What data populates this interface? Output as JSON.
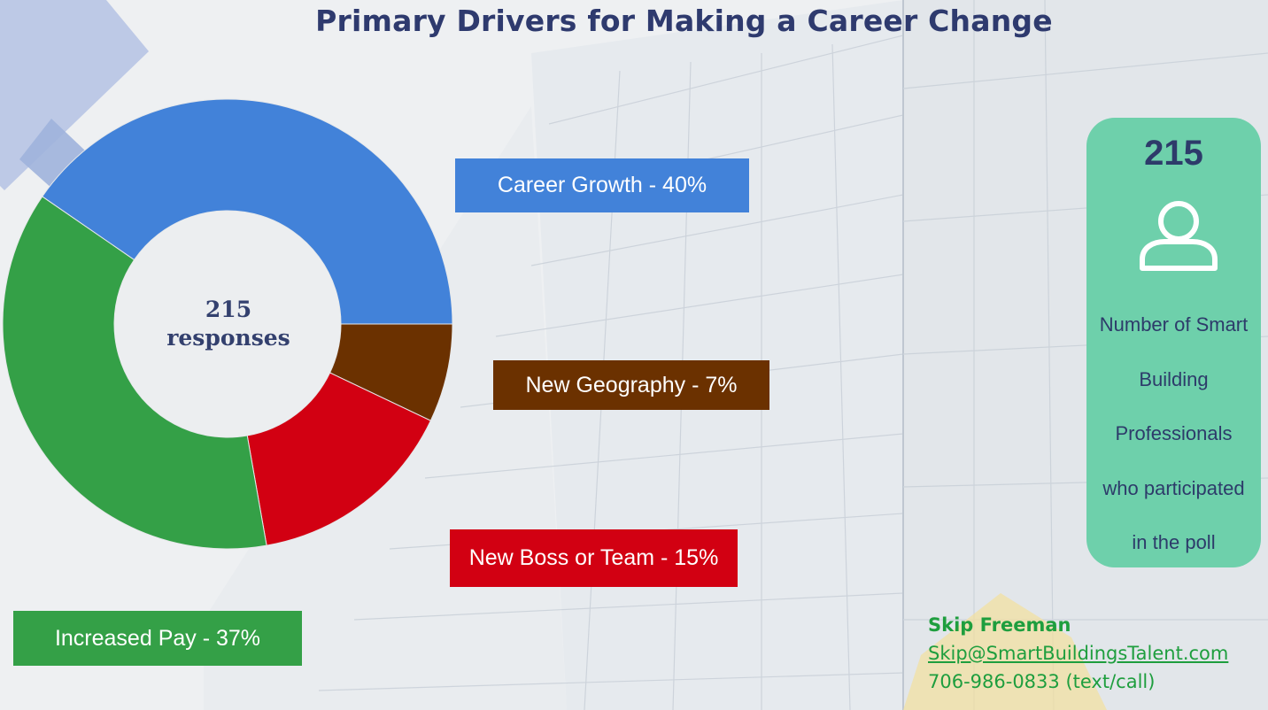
{
  "title": "Primary Drivers for Making a Career Change",
  "colors": {
    "title": "#2e3a6e",
    "card": "#6ed0ab",
    "contact": "#1e9e3e"
  },
  "chart_data": {
    "type": "pie",
    "center_label": [
      "215",
      "responses"
    ],
    "slices": [
      {
        "label": "Career Growth - 40%",
        "value": 40,
        "color": "#4282d9"
      },
      {
        "label": "New Geography - 7%",
        "value": 7,
        "color": "#6b3100"
      },
      {
        "label": "New Boss or Team - 15%",
        "value": 15,
        "color": "#d20012"
      },
      {
        "label": "Increased Pay - 37%",
        "value": 37,
        "color": "#34a047"
      }
    ]
  },
  "stat_card": {
    "number": "215",
    "icon": "person-icon",
    "description_lines": [
      "Number of Smart",
      "Building",
      "Professionals",
      "who participated",
      "in the poll"
    ]
  },
  "contact": {
    "name": "Skip Freeman",
    "email": "Skip@SmartBuildingsTalent.com",
    "phone": "706-986-0833 (text/call)"
  }
}
